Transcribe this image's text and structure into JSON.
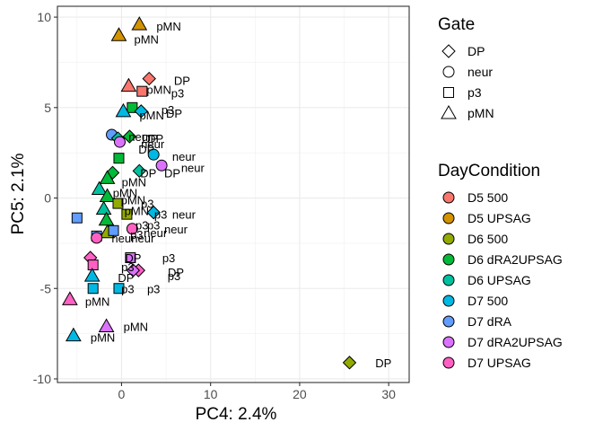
{
  "chart_data": {
    "type": "scatter",
    "xlabel": "PC4: 2.4%",
    "ylabel": "PC5: 2.1%",
    "xlim": [
      -7.2,
      32.3
    ],
    "ylim": [
      -10.2,
      10.6
    ],
    "x_ticks": [
      0,
      10,
      20,
      30
    ],
    "y_ticks": [
      -10,
      -5,
      0,
      5,
      10
    ],
    "grid": true,
    "legend_placement": "right",
    "gate_legend": {
      "title": "Gate",
      "items": [
        {
          "label": "DP",
          "shape": "diamond"
        },
        {
          "label": "neur",
          "shape": "circle"
        },
        {
          "label": "p3",
          "shape": "square"
        },
        {
          "label": "pMN",
          "shape": "triangle"
        }
      ]
    },
    "condition_legend": {
      "title": "DayCondition",
      "items": [
        {
          "label": "D5 500",
          "color": "#F8766D"
        },
        {
          "label": "D5 UPSAG",
          "color": "#D39200"
        },
        {
          "label": "D6 500",
          "color": "#93AA00"
        },
        {
          "label": "D6 dRA2UPSAG",
          "color": "#00BA38"
        },
        {
          "label": "D6 UPSAG",
          "color": "#00C19F"
        },
        {
          "label": "D7 500",
          "color": "#00B9E3"
        },
        {
          "label": "D7 dRA",
          "color": "#619CFF"
        },
        {
          "label": "D7 dRA2UPSAG",
          "color": "#DB72FB"
        },
        {
          "label": "D7 UPSAG",
          "color": "#FF61C3"
        }
      ]
    },
    "points": [
      {
        "x": 2.0,
        "y": 9.6,
        "gate": "pMN",
        "group": "D5 UPSAG"
      },
      {
        "x": -0.3,
        "y": 9.0,
        "gate": "pMN",
        "group": "D5 UPSAG"
      },
      {
        "x": 3.1,
        "y": 6.6,
        "gate": "DP",
        "group": "D5 500"
      },
      {
        "x": 0.8,
        "y": 6.2,
        "gate": "pMN",
        "group": "D5 500"
      },
      {
        "x": 2.3,
        "y": 5.9,
        "gate": "p3",
        "group": "D5 500"
      },
      {
        "x": 1.2,
        "y": 5.0,
        "gate": "p3",
        "group": "D6 dRA2UPSAG"
      },
      {
        "x": 2.2,
        "y": 4.8,
        "gate": "DP",
        "group": "D7 500"
      },
      {
        "x": 0.2,
        "y": 4.8,
        "gate": "pMN",
        "group": "D7 500"
      },
      {
        "x": -1.1,
        "y": 3.5,
        "gate": "neur",
        "group": "D7 dRA"
      },
      {
        "x": -0.4,
        "y": 3.3,
        "gate": "DP",
        "group": "D6 UPSAG"
      },
      {
        "x": 0.9,
        "y": 3.4,
        "gate": "DP",
        "group": "D6 dRA2UPSAG"
      },
      {
        "x": -0.2,
        "y": 3.1,
        "gate": "neur",
        "group": "D7 dRA2UPSAG"
      },
      {
        "x": 3.6,
        "y": 2.4,
        "gate": "neur",
        "group": "D7 500"
      },
      {
        "x": -0.3,
        "y": 2.2,
        "gate": "p3",
        "group": "D6 dRA2UPSAG"
      },
      {
        "x": 4.5,
        "y": 1.8,
        "gate": "neur",
        "group": "D7 dRA2UPSAG"
      },
      {
        "x": 2.0,
        "y": 1.5,
        "gate": "DP",
        "group": "D6 UPSAG"
      },
      {
        "x": -1.0,
        "y": 1.4,
        "gate": "DP",
        "group": "D6 dRA2UPSAG"
      },
      {
        "x": -1.6,
        "y": 1.1,
        "gate": "pMN",
        "group": "D6 dRA2UPSAG"
      },
      {
        "x": -2.5,
        "y": 0.5,
        "gate": "pMN",
        "group": "D6 UPSAG"
      },
      {
        "x": -1.6,
        "y": 0.1,
        "gate": "pMN",
        "group": "D6 dRA2UPSAG"
      },
      {
        "x": -0.4,
        "y": -0.3,
        "gate": "p3",
        "group": "D6 500"
      },
      {
        "x": -2.0,
        "y": -0.6,
        "gate": "pMN",
        "group": "D6 UPSAG"
      },
      {
        "x": 0.6,
        "y": -0.9,
        "gate": "p3",
        "group": "D6 500"
      },
      {
        "x": 3.6,
        "y": -0.8,
        "gate": "DP",
        "group": "D7 500"
      },
      {
        "x": -5.0,
        "y": -1.1,
        "gate": "p3",
        "group": "D7 dRA"
      },
      {
        "x": -1.7,
        "y": -1.2,
        "gate": "pMN",
        "group": "D6 dRA2UPSAG"
      },
      {
        "x": -1.6,
        "y": -1.9,
        "gate": "pMN",
        "group": "D6 500"
      },
      {
        "x": -0.9,
        "y": -1.8,
        "gate": "p3",
        "group": "D7 dRA"
      },
      {
        "x": -2.8,
        "y": -2.1,
        "gate": "p3",
        "group": "D7 dRA"
      },
      {
        "x": 1.2,
        "y": -1.7,
        "gate": "neur",
        "group": "D7 UPSAG"
      },
      {
        "x": -2.8,
        "y": -2.2,
        "gate": "neur",
        "group": "D7 UPSAG"
      },
      {
        "x": -3.5,
        "y": -3.3,
        "gate": "DP",
        "group": "D7 UPSAG"
      },
      {
        "x": 1.0,
        "y": -3.3,
        "gate": "p3",
        "group": "D7 dRA2UPSAG"
      },
      {
        "x": -3.2,
        "y": -3.7,
        "gate": "p3",
        "group": "D7 UPSAG"
      },
      {
        "x": 1.9,
        "y": -4.0,
        "gate": "DP",
        "group": "D7 UPSAG"
      },
      {
        "x": 1.3,
        "y": -4.0,
        "gate": "DP",
        "group": "D7 dRA2UPSAG"
      },
      {
        "x": -3.3,
        "y": -4.3,
        "gate": "pMN",
        "group": "D7 500"
      },
      {
        "x": -3.2,
        "y": -5.0,
        "gate": "p3",
        "group": "D7 500"
      },
      {
        "x": -0.3,
        "y": -5.0,
        "gate": "p3",
        "group": "D7 500"
      },
      {
        "x": -5.8,
        "y": -5.6,
        "gate": "pMN",
        "group": "D7 UPSAG"
      },
      {
        "x": -1.7,
        "y": -7.1,
        "gate": "pMN",
        "group": "D7 dRA2UPSAG"
      },
      {
        "x": -5.4,
        "y": -7.6,
        "gate": "pMN",
        "group": "D7 500"
      },
      {
        "x": 25.6,
        "y": -9.1,
        "gate": "DP",
        "group": "D6 500"
      }
    ],
    "annotations": [
      {
        "text": "pMN",
        "x": 5.3,
        "y": 9.5
      },
      {
        "text": "pMN",
        "x": 2.8,
        "y": 8.8
      },
      {
        "text": "DP",
        "x": 6.8,
        "y": 6.5
      },
      {
        "text": "pMN",
        "x": 4.2,
        "y": 6.0
      },
      {
        "text": "p3",
        "x": 6.3,
        "y": 5.8
      },
      {
        "text": "p3",
        "x": 5.2,
        "y": 4.9
      },
      {
        "text": "DP",
        "x": 5.9,
        "y": 4.7
      },
      {
        "text": "pMN",
        "x": 3.4,
        "y": 4.6
      },
      {
        "text": "neur",
        "x": 2.1,
        "y": 3.4
      },
      {
        "text": "DP",
        "x": 3.2,
        "y": 3.3
      },
      {
        "text": "DP",
        "x": 3.8,
        "y": 3.3
      },
      {
        "text": "neur",
        "x": 3.5,
        "y": 3.0
      },
      {
        "text": "neur",
        "x": 7.0,
        "y": 2.3
      },
      {
        "text": "DP",
        "x": 2.8,
        "y": 2.7
      },
      {
        "text": "neur",
        "x": 8.0,
        "y": 1.7
      },
      {
        "text": "DP",
        "x": 3.0,
        "y": 1.4
      },
      {
        "text": "DP",
        "x": 5.7,
        "y": 1.4
      },
      {
        "text": "pMN",
        "x": 1.4,
        "y": 0.9
      },
      {
        "text": "pMN",
        "x": 0.4,
        "y": 0.3
      },
      {
        "text": "pMN",
        "x": 1.3,
        "y": -0.1
      },
      {
        "text": "p3",
        "x": 2.9,
        "y": -0.3
      },
      {
        "text": "pMN",
        "x": 1.7,
        "y": -0.7
      },
      {
        "text": "p3",
        "x": 4.4,
        "y": -0.9
      },
      {
        "text": "neur",
        "x": 7.0,
        "y": -0.9
      },
      {
        "text": "p3",
        "x": 2.3,
        "y": -1.5
      },
      {
        "text": "p3",
        "x": 3.6,
        "y": -1.5
      },
      {
        "text": "neur",
        "x": 6.1,
        "y": -1.7
      },
      {
        "text": "p3",
        "x": 1.7,
        "y": -2.0
      },
      {
        "text": "neur",
        "x": 0.2,
        "y": -2.2
      },
      {
        "text": "neur",
        "x": 2.4,
        "y": -2.2
      },
      {
        "text": "neur",
        "x": 3.8,
        "y": -1.9
      },
      {
        "text": "p3",
        "x": 5.3,
        "y": -3.3
      },
      {
        "text": "DP",
        "x": 1.3,
        "y": -3.3
      },
      {
        "text": "p3",
        "x": 0.7,
        "y": -3.8
      },
      {
        "text": "DP",
        "x": 6.1,
        "y": -4.1
      },
      {
        "text": "p3",
        "x": 5.9,
        "y": -4.3
      },
      {
        "text": "DP",
        "x": 0.5,
        "y": -4.4
      },
      {
        "text": "p3",
        "x": 0.7,
        "y": -5.0
      },
      {
        "text": "p3",
        "x": 3.6,
        "y": -5.0
      },
      {
        "text": "pMN",
        "x": -2.7,
        "y": -5.7
      },
      {
        "text": "pMN",
        "x": 1.6,
        "y": -7.1
      },
      {
        "text": "pMN",
        "x": -2.1,
        "y": -7.7
      },
      {
        "text": "DP",
        "x": 29.4,
        "y": -9.1
      }
    ]
  }
}
